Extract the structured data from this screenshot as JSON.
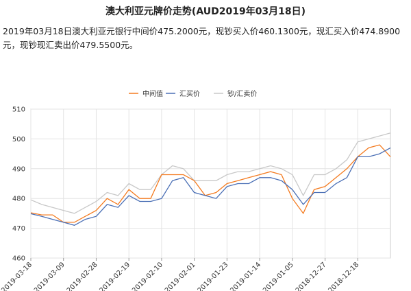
{
  "header": {
    "title": "澳大利亚元牌价走势(AUD2019年03月18日)",
    "description": "2019年03月18日澳大利亚元银行中间价475.2000元，现钞买入价460.1300元，现汇买入价474.8900元，现钞现汇卖出价479.5500元。"
  },
  "chart_data": {
    "type": "line",
    "categories": [
      "2019-03-18",
      null,
      null,
      "2019-03-09",
      null,
      null,
      "2019-02-28",
      null,
      null,
      "2019-02-19",
      null,
      null,
      "2019-02-10",
      null,
      null,
      "2019-02-01",
      null,
      null,
      "2019-01-23",
      null,
      null,
      "2019-01-14",
      null,
      null,
      "2019-01-05",
      null,
      null,
      "2018-12-27",
      null,
      null,
      "2018-12-18",
      null,
      null,
      null
    ],
    "series": [
      {
        "name": "中间值",
        "color": "#f47b20",
        "values": [
          475.2,
          474.5,
          474.5,
          472,
          472,
          474,
          476,
          480,
          478,
          483,
          480,
          480,
          488,
          488,
          488,
          486,
          481,
          482,
          485,
          486,
          487,
          488,
          489,
          488,
          480,
          475,
          483,
          484,
          487,
          490,
          494,
          497,
          498,
          494
        ]
      },
      {
        "name": "汇买价",
        "color": "#4a6fb5",
        "values": [
          474.89,
          474,
          473,
          472,
          471,
          473,
          474,
          478,
          477,
          481,
          479,
          479,
          480,
          486,
          487,
          482,
          481,
          480,
          484,
          485,
          485,
          487,
          487,
          486,
          483,
          478,
          482,
          482,
          485,
          487,
          494,
          494,
          495,
          497
        ]
      },
      {
        "name": "钞/汇卖价",
        "color": "#c8c8c8",
        "values": [
          479.55,
          478,
          477,
          476,
          475,
          477,
          479,
          482,
          481,
          485,
          483,
          483,
          488,
          491,
          490,
          486,
          486,
          486,
          488,
          489,
          489,
          490,
          491,
          490,
          488,
          481,
          488,
          488,
          490,
          493,
          499,
          500,
          501,
          502
        ]
      }
    ],
    "ylim": [
      460,
      510
    ],
    "yticks": [
      460,
      470,
      480,
      490,
      500,
      510
    ],
    "grid": true
  }
}
